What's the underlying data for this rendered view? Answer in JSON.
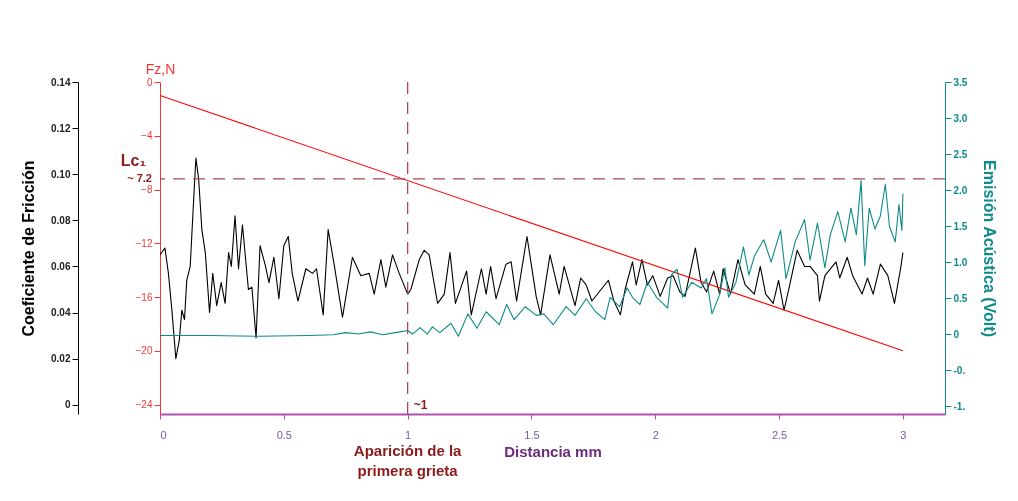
{
  "chart_data": {
    "type": "line",
    "xlabel": "Distancia mm",
    "ylabel": "Coeficiente de Fricción",
    "y2label": "Fz,N",
    "y3label": "Emisión Acústica (Volt)",
    "xlim": [
      0,
      3.17
    ],
    "xticks": [
      0,
      0.5,
      1,
      1.5,
      2,
      2.5,
      3
    ],
    "ylim": [
      -0.004,
      0.14
    ],
    "yticks": [
      0,
      0.02,
      0.04,
      0.06,
      0.08,
      {
        "value": 0.1,
        "label": "0.10"
      },
      0.12,
      0.14
    ],
    "y2lim": [
      -24.7,
      0
    ],
    "y2ticks": [
      0,
      -4,
      -8,
      -12,
      -16,
      -20,
      -24
    ],
    "y3lim": [
      -1.11,
      3.5
    ],
    "y3ticks": [
      {
        "value": -1,
        "label": "-1."
      },
      {
        "value": -0.5,
        "label": "-0."
      },
      0,
      0.5,
      {
        "value": 1,
        "label": "1.0"
      },
      1.5,
      {
        "value": 2,
        "label": "2.0"
      },
      2.5,
      {
        "value": 3,
        "label": "3.0"
      },
      3.5
    ],
    "series": [
      {
        "color": "#000000",
        "x": [
          0,
          0.02,
          0.034,
          0.048,
          0.064,
          0.078,
          0.088,
          0.099,
          0.108,
          0.122,
          0.133,
          0.145,
          0.156,
          0.169,
          0.183,
          0.2,
          0.213,
          0.229,
          0.247,
          0.263,
          0.277,
          0.288,
          0.303,
          0.317,
          0.333,
          0.357,
          0.371,
          0.388,
          0.404,
          0.424,
          0.44,
          0.46,
          0.48,
          0.5,
          0.518,
          0.534,
          0.557,
          0.589,
          0.616,
          0.632,
          0.659,
          0.679,
          0.703,
          0.737,
          0.777,
          0.811,
          0.845,
          0.865,
          0.892,
          0.912,
          0.939,
          0.966,
          1.0,
          1.013,
          1.047,
          1.067,
          1.087,
          1.121,
          1.148,
          1.171,
          1.193,
          1.238,
          1.257,
          1.298,
          1.317,
          1.335,
          1.357,
          1.397,
          1.418,
          1.44,
          1.482,
          1.519,
          1.537,
          1.575,
          1.612,
          1.632,
          1.676,
          1.699,
          1.721,
          1.744,
          1.811,
          1.833,
          1.859,
          1.878,
          1.908,
          1.923,
          1.946,
          1.968,
          1.99,
          2.02,
          2.05,
          2.072,
          2.099,
          2.12,
          2.162,
          2.185,
          2.207,
          2.236,
          2.26,
          2.274,
          2.304,
          2.334,
          2.363,
          2.4,
          2.424,
          2.446,
          2.476,
          2.498,
          2.52,
          2.543,
          2.573,
          2.603,
          2.625,
          2.655,
          2.663,
          2.685,
          2.73,
          2.745,
          2.775,
          2.797,
          2.835,
          2.857,
          2.88,
          2.909,
          2.939,
          2.966,
          2.992,
          3.0
        ],
        "values": [
          0.065,
          0.068,
          0.057,
          0.041,
          0.02,
          0.028,
          0.041,
          0.037,
          0.054,
          0.06,
          0.083,
          0.107,
          0.098,
          0.076,
          0.066,
          0.04,
          0.057,
          0.043,
          0.053,
          0.044,
          0.066,
          0.06,
          0.082,
          0.059,
          0.078,
          0.05,
          0.051,
          0.029,
          0.069,
          0.061,
          0.053,
          0.064,
          0.046,
          0.069,
          0.073,
          0.057,
          0.045,
          0.059,
          0.057,
          0.059,
          0.039,
          0.076,
          0.061,
          0.038,
          0.064,
          0.056,
          0.057,
          0.048,
          0.063,
          0.051,
          0.065,
          0.057,
          0.048,
          0.05,
          0.063,
          0.067,
          0.065,
          0.044,
          0.048,
          0.066,
          0.044,
          0.058,
          0.039,
          0.059,
          0.048,
          0.06,
          0.046,
          0.061,
          0.062,
          0.045,
          0.073,
          0.047,
          0.039,
          0.065,
          0.048,
          0.06,
          0.043,
          0.055,
          0.052,
          0.045,
          0.054,
          0.045,
          0.039,
          0.05,
          0.062,
          0.052,
          0.063,
          0.052,
          0.056,
          0.047,
          0.055,
          0.056,
          0.049,
          0.047,
          0.068,
          0.053,
          0.049,
          0.058,
          0.048,
          0.059,
          0.048,
          0.063,
          0.052,
          0.048,
          0.06,
          0.048,
          0.044,
          0.054,
          0.041,
          0.052,
          0.067,
          0.06,
          0.06,
          0.056,
          0.045,
          0.056,
          0.062,
          0.055,
          0.064,
          0.056,
          0.048,
          0.055,
          0.048,
          0.061,
          0.056,
          0.044,
          0.06,
          0.066
        ]
      },
      {
        "color": "#ff0000",
        "axis": "y2",
        "x": [
          0,
          3
        ],
        "values": [
          -1,
          -20
        ]
      },
      {
        "color": "#0e8a8a",
        "axis": "y3",
        "x": [
          0,
          0.2,
          0.4,
          0.6,
          0.7,
          0.75,
          0.8,
          0.85,
          0.9,
          0.95,
          1.0,
          1.02,
          1.05,
          1.08,
          1.1,
          1.13,
          1.175,
          1.205,
          1.243,
          1.28,
          1.317,
          1.37,
          1.4,
          1.43,
          1.475,
          1.52,
          1.55,
          1.588,
          1.64,
          1.676,
          1.721,
          1.759,
          1.796,
          1.818,
          1.856,
          1.886,
          1.908,
          1.938,
          1.968,
          2.005,
          2.05,
          2.065,
          2.088,
          2.11,
          2.147,
          2.185,
          2.207,
          2.229,
          2.259,
          2.281,
          2.296,
          2.326,
          2.356,
          2.378,
          2.4,
          2.438,
          2.468,
          2.506,
          2.528,
          2.565,
          2.603,
          2.625,
          2.655,
          2.685,
          2.707,
          2.737,
          2.767,
          2.79,
          2.812,
          2.831,
          2.846,
          2.864,
          2.887,
          2.909,
          2.929,
          2.946,
          2.969,
          2.984,
          2.996,
          3.0
        ],
        "values": [
          -0.02,
          -0.02,
          -0.03,
          -0.02,
          -0.01,
          0.02,
          0.0,
          0.03,
          -0.01,
          0.02,
          0.05,
          0.0,
          0.09,
          0.0,
          0.1,
          0.02,
          0.15,
          -0.03,
          0.28,
          0.08,
          0.31,
          0.13,
          0.41,
          0.2,
          0.38,
          0.26,
          0.28,
          0.13,
          0.38,
          0.26,
          0.49,
          0.31,
          0.2,
          0.51,
          0.38,
          0.64,
          0.51,
          0.41,
          0.72,
          0.51,
          0.36,
          0.82,
          0.9,
          0.51,
          0.72,
          0.64,
          0.77,
          0.28,
          0.54,
          0.92,
          0.51,
          0.72,
          1.21,
          0.82,
          1.08,
          1.31,
          1.0,
          1.44,
          0.77,
          1.28,
          1.59,
          1.03,
          1.54,
          0.92,
          1.38,
          1.7,
          1.28,
          1.75,
          1.38,
          2.13,
          0.95,
          1.75,
          1.46,
          1.64,
          2.08,
          1.49,
          1.28,
          1.8,
          1.44,
          1.95
        ]
      }
    ],
    "ref_lines": [
      {
        "axis": "y2",
        "value": -7.2,
        "label": "Lc₁",
        "color": "#a84858",
        "line_style": "dashed"
      },
      {
        "axis": "x",
        "value": 1,
        "label": "~1",
        "color": "#a84858",
        "line_style": "dashed"
      }
    ],
    "annotations": [
      "~ 7.2",
      "Aparición de la primera grieta"
    ]
  }
}
